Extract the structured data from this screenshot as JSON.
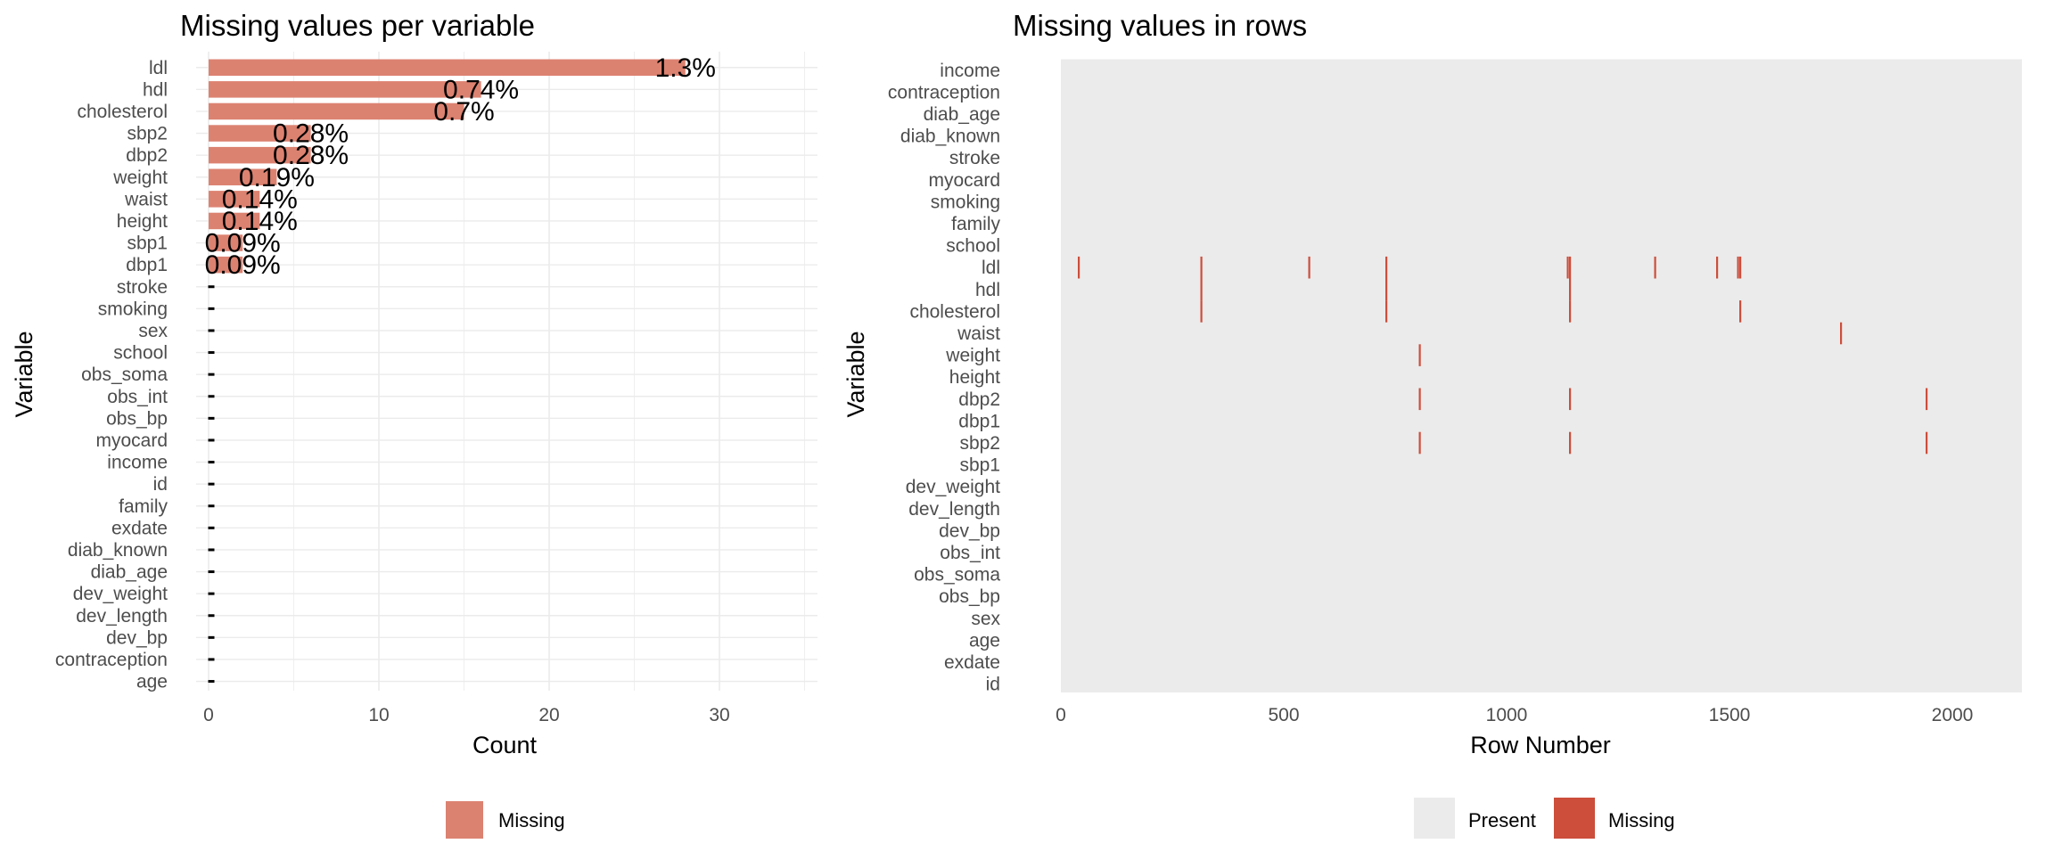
{
  "colors": {
    "bar": "#dc8271",
    "missing": "#cc4e3b",
    "present": "#ebebeb",
    "grid": "#ebebeb",
    "zero_marker": "#000000"
  },
  "chart_data": [
    {
      "type": "bar",
      "orientation": "horizontal",
      "title": "Missing values per variable",
      "xlabel": "Count",
      "ylabel": "Variable",
      "xlim": [
        0,
        35
      ],
      "xticks": [
        "0",
        "10",
        "20",
        "30"
      ],
      "grid": true,
      "legend": {
        "placement": "bottom",
        "entries": [
          "Missing"
        ]
      },
      "categories": [
        "ldl",
        "hdl",
        "cholesterol",
        "sbp2",
        "dbp2",
        "weight",
        "waist",
        "height",
        "sbp1",
        "dbp1",
        "stroke",
        "smoking",
        "sex",
        "school",
        "obs_soma",
        "obs_int",
        "obs_bp",
        "myocard",
        "income",
        "id",
        "family",
        "exdate",
        "diab_known",
        "diab_age",
        "dev_weight",
        "dev_length",
        "dev_bp",
        "contraception",
        "age"
      ],
      "values": [
        28,
        16,
        15,
        6,
        6,
        4,
        3,
        3,
        2,
        2,
        0,
        0,
        0,
        0,
        0,
        0,
        0,
        0,
        0,
        0,
        0,
        0,
        0,
        0,
        0,
        0,
        0,
        0,
        0
      ],
      "labels": [
        "1.3%",
        "0.74%",
        "0.7%",
        "0.28%",
        "0.28%",
        "0.19%",
        "0.14%",
        "0.14%",
        "0.09%",
        "0.09%",
        "",
        "",
        "",
        "",
        "",
        "",
        "",
        "",
        "",
        "",
        "",
        "",
        "",
        "",
        "",
        "",
        "",
        "",
        ""
      ]
    },
    {
      "type": "heatmap",
      "title": "Missing values in rows",
      "xlabel": "Row Number",
      "ylabel": "Variable",
      "xlim": [
        0,
        2150
      ],
      "xticks": [
        "0",
        "500",
        "1000",
        "1500",
        "2000"
      ],
      "legend": {
        "placement": "bottom",
        "entries": [
          "Present",
          "Missing"
        ]
      },
      "variables": [
        "income",
        "contraception",
        "diab_age",
        "diab_known",
        "stroke",
        "myocard",
        "smoking",
        "family",
        "school",
        "ldl",
        "hdl",
        "cholesterol",
        "waist",
        "weight",
        "height",
        "dbp2",
        "dbp1",
        "sbp2",
        "sbp1",
        "dev_weight",
        "dev_length",
        "dev_bp",
        "obs_int",
        "obs_soma",
        "obs_bp",
        "sex",
        "age",
        "exdate",
        "id"
      ],
      "missing_rows": {
        "ldl": [
          40,
          315,
          557,
          730,
          1137,
          1142,
          1333,
          1472,
          1519,
          1524
        ],
        "hdl": [
          315,
          730,
          1142
        ],
        "cholesterol": [
          315,
          730,
          1142,
          1524
        ],
        "waist": [
          1750
        ],
        "weight": [
          805
        ],
        "dbp2": [
          805,
          1142,
          1942
        ],
        "sbp2": [
          805,
          1142,
          1942
        ]
      }
    }
  ]
}
